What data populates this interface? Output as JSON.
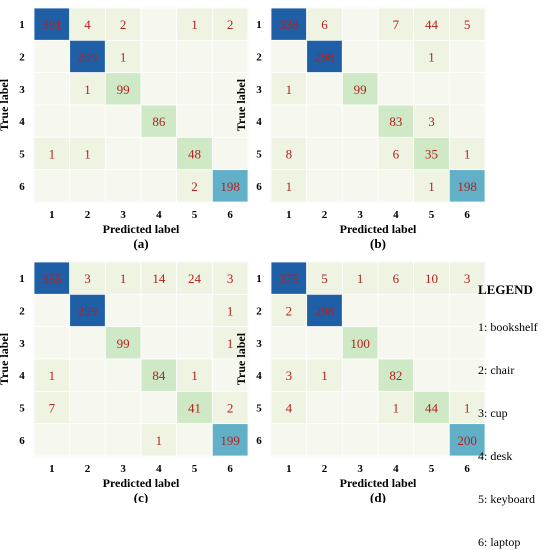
{
  "chart_data": [
    {
      "type": "heatmap",
      "caption": "(a)",
      "xlabel": "Predicted label",
      "ylabel": "True label",
      "x_ticks": [
        "1",
        "2",
        "3",
        "4",
        "5",
        "6"
      ],
      "y_ticks": [
        "1",
        "2",
        "3",
        "4",
        "5",
        "6"
      ],
      "matrix": [
        [
          391,
          4,
          2,
          null,
          1,
          2
        ],
        [
          null,
          299,
          1,
          null,
          null,
          null
        ],
        [
          null,
          1,
          99,
          null,
          null,
          null
        ],
        [
          null,
          null,
          null,
          86,
          null,
          null
        ],
        [
          1,
          1,
          null,
          null,
          48,
          null
        ],
        [
          null,
          null,
          null,
          null,
          2,
          198
        ]
      ]
    },
    {
      "type": "heatmap",
      "caption": "(b)",
      "xlabel": "Predicted label",
      "ylabel": "True label",
      "x_ticks": [
        "1",
        "2",
        "3",
        "4",
        "5",
        "6"
      ],
      "y_ticks": [
        "1",
        "2",
        "3",
        "4",
        "5",
        "6"
      ],
      "matrix": [
        [
          338,
          6,
          null,
          7,
          44,
          5
        ],
        [
          null,
          298,
          null,
          null,
          1,
          null
        ],
        [
          1,
          null,
          99,
          null,
          null,
          null
        ],
        [
          null,
          null,
          null,
          83,
          3,
          null
        ],
        [
          8,
          null,
          null,
          6,
          35,
          1
        ],
        [
          1,
          null,
          null,
          null,
          1,
          198
        ]
      ]
    },
    {
      "type": "heatmap",
      "caption": "(c)",
      "xlabel": "Predicted label",
      "ylabel": "True label",
      "x_ticks": [
        "1",
        "2",
        "3",
        "4",
        "5",
        "6"
      ],
      "y_ticks": [
        "1",
        "2",
        "3",
        "4",
        "5",
        "6"
      ],
      "matrix": [
        [
          355,
          3,
          1,
          14,
          24,
          3
        ],
        [
          null,
          299,
          null,
          null,
          null,
          1
        ],
        [
          null,
          null,
          99,
          null,
          null,
          1
        ],
        [
          1,
          null,
          null,
          84,
          1,
          null
        ],
        [
          7,
          null,
          null,
          null,
          41,
          2
        ],
        [
          null,
          null,
          null,
          1,
          null,
          199
        ]
      ]
    },
    {
      "type": "heatmap",
      "caption": "(d)",
      "xlabel": "Predicted label",
      "ylabel": "True label",
      "x_ticks": [
        "1",
        "2",
        "3",
        "4",
        "5",
        "6"
      ],
      "y_ticks": [
        "1",
        "2",
        "3",
        "4",
        "5",
        "6"
      ],
      "matrix": [
        [
          375,
          5,
          1,
          6,
          10,
          3
        ],
        [
          2,
          298,
          null,
          null,
          null,
          null
        ],
        [
          null,
          null,
          100,
          null,
          null,
          null
        ],
        [
          3,
          1,
          null,
          82,
          null,
          null
        ],
        [
          4,
          null,
          null,
          1,
          44,
          1
        ],
        [
          null,
          null,
          null,
          null,
          null,
          200
        ]
      ]
    }
  ],
  "colors": {
    "cell_empty": "#f6f8ef",
    "cell_low": "#eef3e2",
    "cell_mid": "#cfe8c5",
    "cell_high_teal": "#62b0c8",
    "cell_max": "#1f5fa6",
    "value_text": "#b22222",
    "grid_line": "#ffffff"
  },
  "legend": {
    "title": "LEGEND",
    "items": [
      "1: bookshelf",
      "2: chair",
      "3: cup",
      "4: desk",
      "5: keyboard",
      "6: laptop"
    ]
  }
}
